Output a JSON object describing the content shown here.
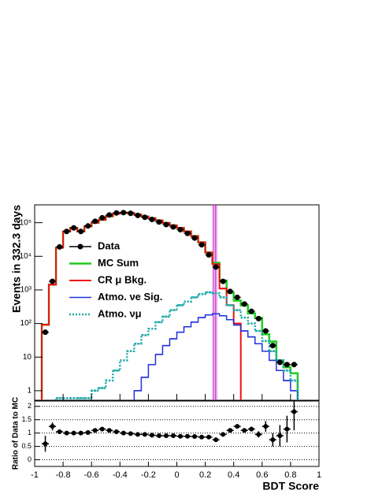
{
  "chart_data": [
    {
      "type": "histogram",
      "log_y": true,
      "ylabel": "Events in 332.3 days",
      "bins": [
        -0.95,
        -0.9,
        -0.85,
        -0.8,
        -0.75,
        -0.7,
        -0.65,
        -0.6,
        -0.55,
        -0.5,
        -0.45,
        -0.4,
        -0.35,
        -0.3,
        -0.25,
        -0.2,
        -0.15,
        -0.1,
        -0.05,
        0,
        0.05,
        0.1,
        0.15,
        0.2,
        0.25,
        0.3,
        0.35,
        0.4,
        0.45,
        0.5,
        0.55,
        0.6,
        0.65,
        0.7,
        0.75,
        0.8,
        0.85
      ],
      "xlim": [
        -1,
        1
      ],
      "xticks": [
        -1,
        -0.8,
        -0.6,
        -0.4,
        -0.2,
        0,
        0.2,
        0.4,
        0.6,
        0.8,
        1
      ],
      "ylim": [
        0.52,
        340000
      ],
      "yticks": [
        1,
        10,
        {
          "value": 100,
          "label": "10²"
        },
        {
          "value": 1000,
          "label": "10³"
        },
        {
          "value": 10000,
          "label": "10⁴"
        },
        {
          "value": 100000,
          "label": "10⁵"
        }
      ],
      "cut_band": [
        0.255,
        0.285
      ],
      "cut_color": "#cc33cc",
      "series": [
        {
          "name": "Data",
          "style": "points",
          "color": "#000000",
          "values": [
            55,
            1800,
            19000,
            55000,
            70000,
            55000,
            80000,
            110000,
            140000,
            170000,
            195000,
            200000,
            190000,
            165000,
            145000,
            125000,
            105000,
            88000,
            75000,
            62000,
            48000,
            35000,
            22000,
            11000,
            4800,
            1800,
            900,
            600,
            380,
            230,
            140,
            60,
            22,
            7,
            6,
            6
          ]
        },
        {
          "name": "MC Sum",
          "style": "step",
          "color": "#22cc22",
          "width": 2.5,
          "values": [
            92,
            1440,
            18100,
            55000,
            70000,
            55000,
            78000,
            100000,
            122000,
            155000,
            186000,
            200000,
            194000,
            174000,
            153000,
            136000,
            117000,
            98000,
            83000,
            70000,
            55000,
            40000,
            26000,
            13000,
            6400,
            1900,
            820,
            480,
            345,
            200,
            147,
            48,
            29,
            8,
            5,
            3.3
          ]
        },
        {
          "name": "CR  μ Bkg.",
          "style": "step",
          "color": "#ee1111",
          "width": 2,
          "values": [
            92,
            1440,
            18100,
            55000,
            70000,
            55000,
            78000,
            100000,
            122000,
            155000,
            186000,
            200000,
            194000,
            174000,
            153000,
            136000,
            117000,
            98000,
            83000,
            70000,
            55000,
            40000,
            26000,
            13000,
            5800,
            1100,
            350,
            100,
            0,
            0,
            0,
            0,
            0,
            0,
            0,
            0
          ]
        },
        {
          "name": "Atmo. νe Sig.",
          "style": "step",
          "color": "#2233dd",
          "width": 1.5,
          "values": [
            0,
            0,
            0,
            0,
            0,
            0,
            0,
            0,
            0,
            0,
            0,
            0,
            0,
            1,
            2.5,
            6,
            12,
            22,
            35,
            55,
            80,
            110,
            150,
            180,
            195,
            170,
            130,
            90,
            60,
            40,
            25,
            15,
            8,
            4,
            2,
            1
          ]
        },
        {
          "name": "Atmo. νμ",
          "style": "dotted",
          "color": "#22aaaa",
          "width": 2.5,
          "values": [
            0,
            0,
            0.6,
            0.6,
            0.6,
            0.6,
            0.6,
            1,
            1.2,
            2,
            4,
            8,
            15,
            25,
            45,
            70,
            110,
            160,
            250,
            350,
            450,
            600,
            750,
            850,
            800,
            600,
            350,
            250,
            150,
            100,
            60,
            30,
            15,
            8,
            4,
            2
          ]
        }
      ]
    },
    {
      "type": "ratio",
      "xlabel": "BDT Score",
      "ylabel": "Ratio of Data to MC",
      "ylim": [
        -0.25,
        2.2
      ],
      "yticks": [
        0,
        0.5,
        1,
        1.5,
        2
      ],
      "grid": true,
      "values": [
        0.6,
        1.25,
        1.05,
        1.0,
        1.0,
        1.0,
        1.02,
        1.1,
        1.15,
        1.1,
        1.05,
        1.0,
        0.98,
        0.95,
        0.95,
        0.92,
        0.9,
        0.9,
        0.9,
        0.88,
        0.88,
        0.87,
        0.85,
        0.85,
        0.75,
        0.95,
        1.1,
        1.25,
        1.1,
        1.15,
        0.95,
        1.25,
        0.75,
        0.9,
        1.15,
        1.8
      ],
      "errors": [
        0.3,
        0.15,
        0.04,
        0.03,
        0.03,
        0.03,
        0.03,
        0.03,
        0.03,
        0.03,
        0.03,
        0.03,
        0.03,
        0.03,
        0.03,
        0.03,
        0.03,
        0.03,
        0.03,
        0.03,
        0.03,
        0.03,
        0.03,
        0.03,
        0.04,
        0.05,
        0.06,
        0.07,
        0.08,
        0.09,
        0.12,
        0.2,
        0.25,
        0.4,
        0.5,
        0.7
      ]
    }
  ]
}
